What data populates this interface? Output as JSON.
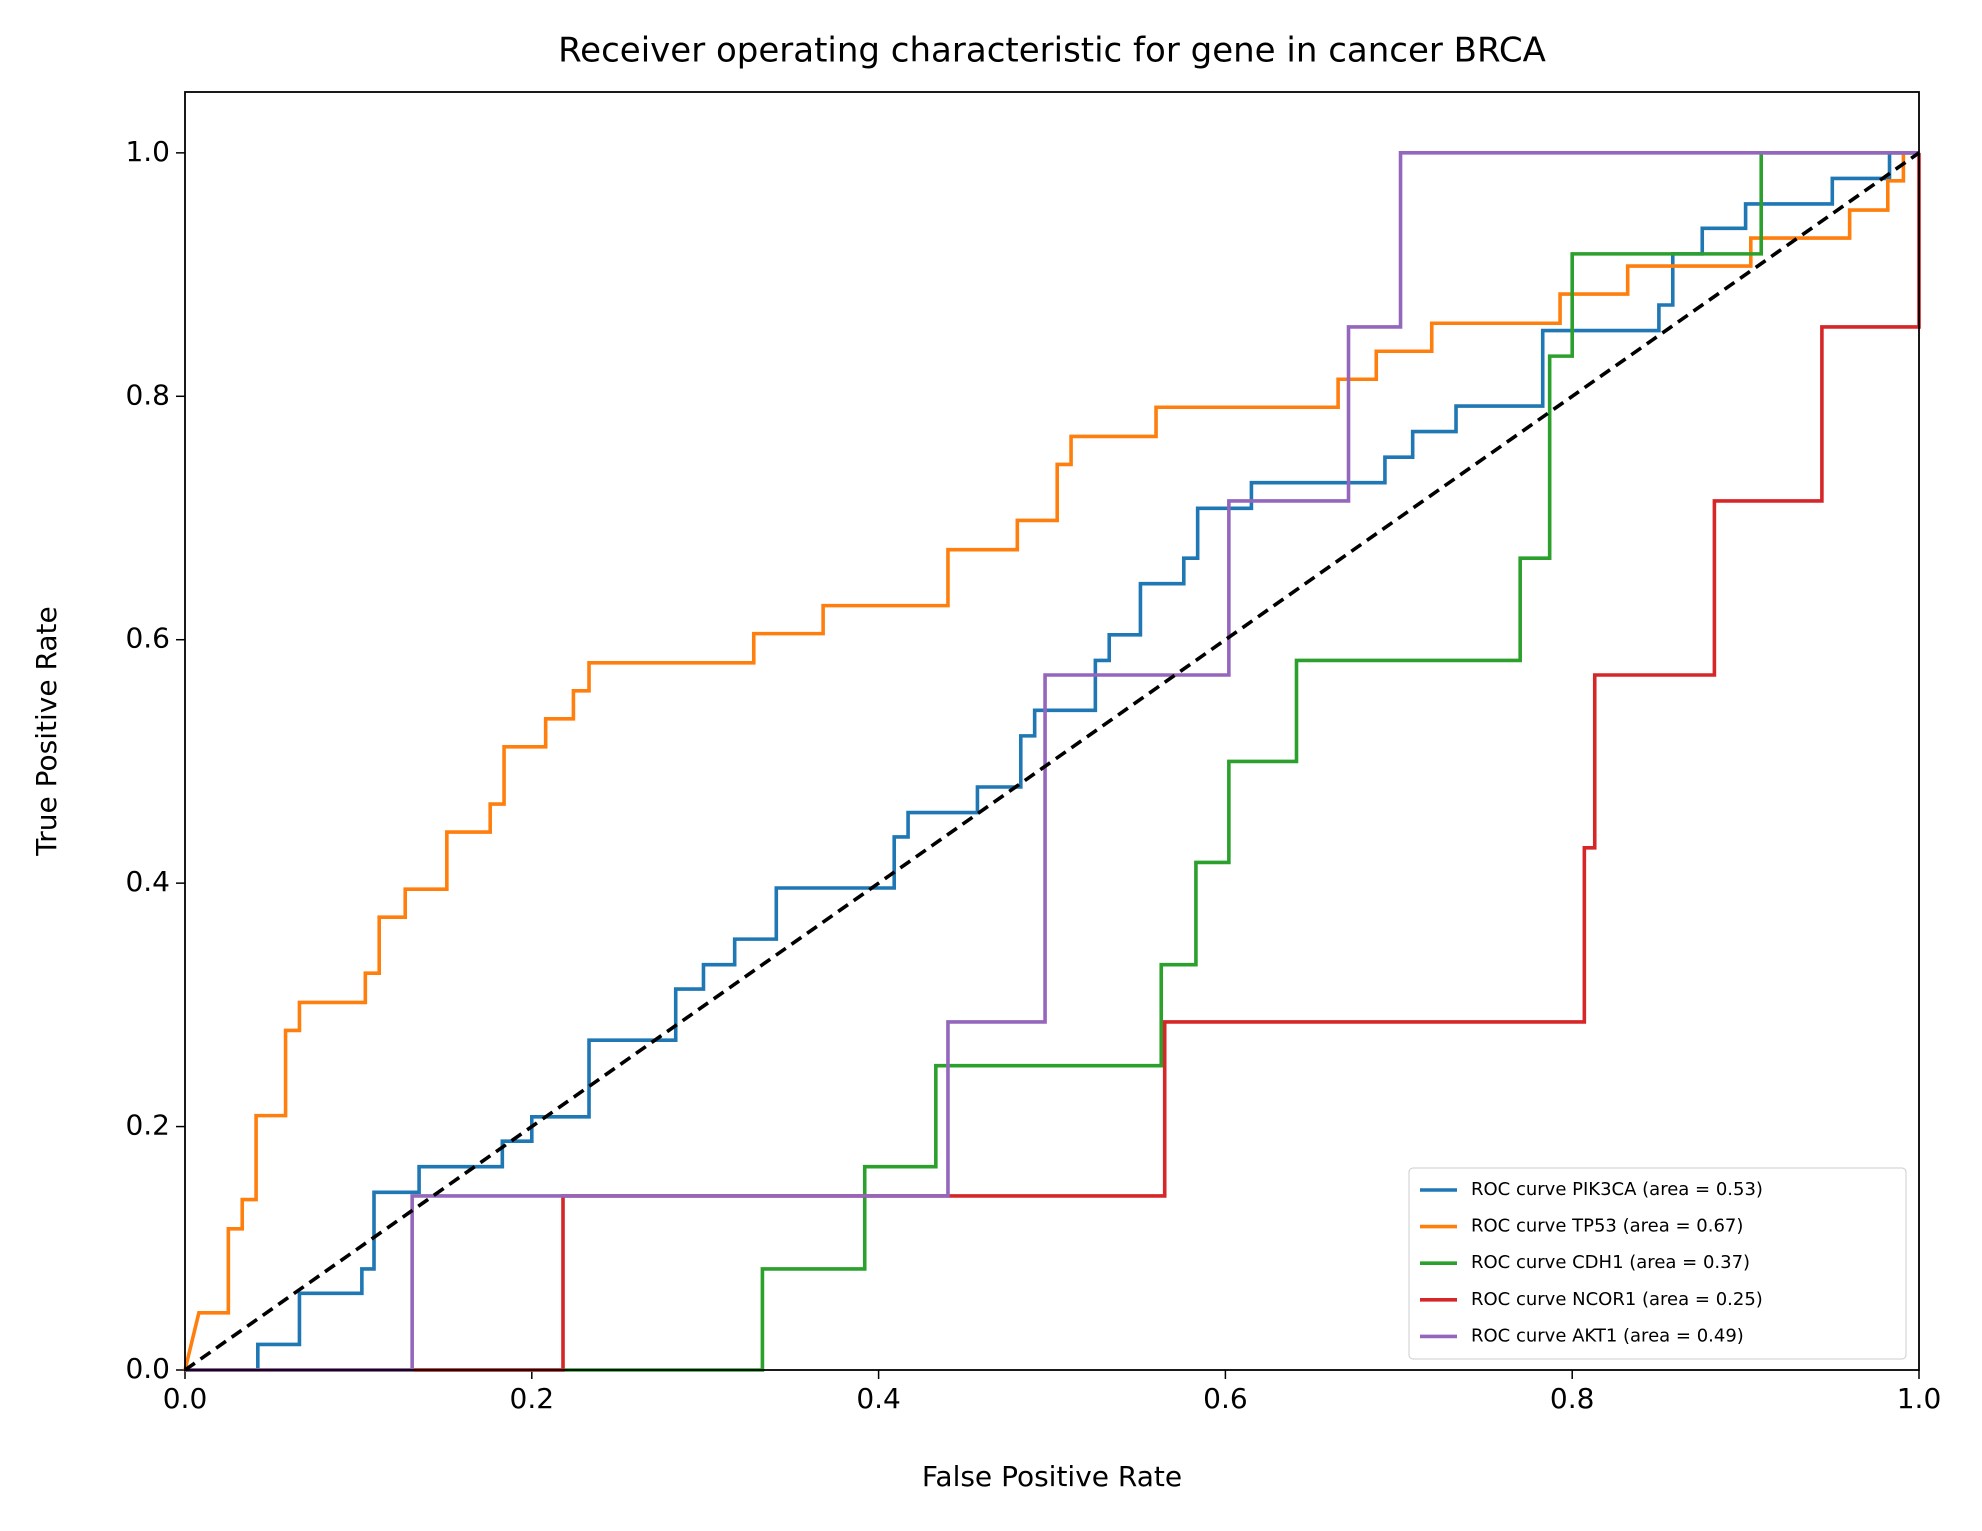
{
  "chart_data": {
    "type": "line",
    "title": "Receiver operating characteristic for gene in cancer BRCA",
    "xlabel": "False Positive Rate",
    "ylabel": "True Positive Rate",
    "xlim": [
      0,
      1
    ],
    "ylim": [
      0,
      1.05
    ],
    "xticks": [
      {
        "value": 0,
        "label": "0.0"
      },
      0.2,
      0.4,
      0.6,
      0.8,
      {
        "value": 1,
        "label": "1.0"
      }
    ],
    "yticks": [
      {
        "value": 0,
        "label": "0.0"
      },
      0.2,
      0.4,
      0.6,
      0.8,
      {
        "value": 1,
        "label": "1.0"
      }
    ],
    "legend": "lower right",
    "diagonal": {
      "color": "#000000",
      "x": [
        0,
        1
      ],
      "y": [
        0,
        1
      ]
    },
    "series": [
      {
        "name": "ROC curve PIK3CA (area = 0.53)",
        "color": "#1f77b4",
        "x": [
          0,
          0.042,
          0.042,
          0.066,
          0.066,
          0.102,
          0.102,
          0.109,
          0.109,
          0.135,
          0.135,
          0.183,
          0.183,
          0.2,
          0.2,
          0.233,
          0.233,
          0.283,
          0.283,
          0.299,
          0.299,
          0.317,
          0.317,
          0.341,
          0.341,
          0.409,
          0.409,
          0.417,
          0.417,
          0.457,
          0.457,
          0.482,
          0.482,
          0.49,
          0.49,
          0.525,
          0.525,
          0.533,
          0.533,
          0.551,
          0.551,
          0.576,
          0.576,
          0.584,
          0.584,
          0.615,
          0.615,
          0.692,
          0.692,
          0.708,
          0.708,
          0.733,
          0.733,
          0.783,
          0.783,
          0.85,
          0.85,
          0.858,
          0.858,
          0.875,
          0.875,
          0.9,
          0.9,
          0.95,
          0.95,
          0.983,
          0.983,
          1
        ],
        "y": [
          0,
          0,
          0.021,
          0.021,
          0.063,
          0.063,
          0.083,
          0.083,
          0.146,
          0.146,
          0.167,
          0.167,
          0.188,
          0.188,
          0.208,
          0.208,
          0.271,
          0.271,
          0.313,
          0.313,
          0.333,
          0.333,
          0.354,
          0.354,
          0.396,
          0.396,
          0.438,
          0.438,
          0.458,
          0.458,
          0.479,
          0.479,
          0.521,
          0.521,
          0.542,
          0.542,
          0.583,
          0.583,
          0.604,
          0.604,
          0.646,
          0.646,
          0.667,
          0.667,
          0.708,
          0.708,
          0.729,
          0.729,
          0.75,
          0.75,
          0.771,
          0.771,
          0.792,
          0.792,
          0.854,
          0.854,
          0.875,
          0.875,
          0.917,
          0.917,
          0.938,
          0.938,
          0.958,
          0.958,
          0.979,
          0.979,
          1,
          1
        ]
      },
      {
        "name": "ROC curve TP53 (area = 0.67)",
        "color": "#ff7f0e",
        "x": [
          0,
          0.008,
          0.025,
          0.025,
          0.033,
          0.033,
          0.041,
          0.041,
          0.058,
          0.058,
          0.066,
          0.066,
          0.104,
          0.104,
          0.112,
          0.112,
          0.127,
          0.127,
          0.151,
          0.151,
          0.176,
          0.176,
          0.184,
          0.184,
          0.208,
          0.208,
          0.224,
          0.224,
          0.233,
          0.233,
          0.328,
          0.328,
          0.368,
          0.368,
          0.44,
          0.44,
          0.48,
          0.48,
          0.503,
          0.503,
          0.511,
          0.511,
          0.56,
          0.56,
          0.665,
          0.665,
          0.687,
          0.687,
          0.719,
          0.719,
          0.793,
          0.793,
          0.832,
          0.832,
          0.903,
          0.903,
          0.96,
          0.96,
          0.982,
          0.982,
          0.991,
          0.991,
          1
        ],
        "y": [
          0,
          0.047,
          0.047,
          0.116,
          0.116,
          0.14,
          0.14,
          0.209,
          0.209,
          0.279,
          0.279,
          0.302,
          0.302,
          0.326,
          0.326,
          0.372,
          0.372,
          0.395,
          0.395,
          0.442,
          0.442,
          0.465,
          0.465,
          0.512,
          0.512,
          0.535,
          0.535,
          0.558,
          0.558,
          0.581,
          0.581,
          0.605,
          0.605,
          0.628,
          0.628,
          0.674,
          0.674,
          0.698,
          0.698,
          0.744,
          0.744,
          0.767,
          0.767,
          0.791,
          0.791,
          0.814,
          0.814,
          0.837,
          0.837,
          0.86,
          0.86,
          0.884,
          0.884,
          0.907,
          0.907,
          0.93,
          0.93,
          0.953,
          0.953,
          0.977,
          0.977,
          1,
          1
        ]
      },
      {
        "name": "ROC curve CDH1 (area = 0.37)",
        "color": "#2ca02c",
        "x": [
          0,
          0.333,
          0.333,
          0.392,
          0.392,
          0.433,
          0.433,
          0.563,
          0.563,
          0.583,
          0.583,
          0.602,
          0.602,
          0.641,
          0.641,
          0.77,
          0.77,
          0.787,
          0.787,
          0.8,
          0.8,
          0.909,
          0.909,
          1
        ],
        "y": [
          0,
          0,
          0.083,
          0.083,
          0.167,
          0.167,
          0.25,
          0.25,
          0.333,
          0.333,
          0.417,
          0.417,
          0.5,
          0.5,
          0.583,
          0.583,
          0.667,
          0.667,
          0.833,
          0.833,
          0.917,
          0.917,
          1,
          1
        ]
      },
      {
        "name": "ROC curve NCOR1 (area = 0.25)",
        "color": "#d62728",
        "x": [
          0,
          0.218,
          0.218,
          0.565,
          0.565,
          0.807,
          0.807,
          0.813,
          0.813,
          0.882,
          0.882,
          0.944,
          0.944,
          1,
          1
        ],
        "y": [
          0,
          0,
          0.143,
          0.143,
          0.286,
          0.286,
          0.429,
          0.429,
          0.571,
          0.571,
          0.714,
          0.714,
          0.857,
          0.857,
          1
        ]
      },
      {
        "name": "ROC curve AKT1 (area = 0.49)",
        "color": "#9467bd",
        "x": [
          0,
          0.131,
          0.131,
          0.44,
          0.44,
          0.496,
          0.496,
          0.602,
          0.602,
          0.671,
          0.671,
          0.701,
          0.701,
          1
        ],
        "y": [
          0,
          0,
          0.143,
          0.143,
          0.286,
          0.286,
          0.571,
          0.571,
          0.714,
          0.714,
          0.857,
          0.857,
          1,
          1
        ]
      }
    ]
  }
}
